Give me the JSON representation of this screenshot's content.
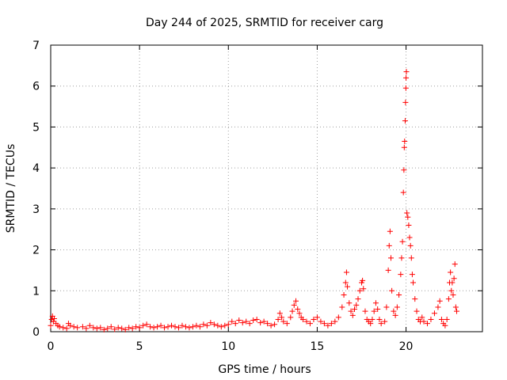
{
  "chart_data": {
    "type": "scatter",
    "title": "Day 244 of 2025, SRMTID for receiver carg",
    "xlabel": "GPS time / hours",
    "ylabel": "SRMTID / TECUs",
    "xlim": [
      0,
      24.3
    ],
    "ylim": [
      0,
      7
    ],
    "xticks": [
      "0",
      "5",
      "10",
      "15",
      "20"
    ],
    "yticks": [
      "0",
      "1",
      "2",
      "3",
      "4",
      "5",
      "6",
      "7"
    ],
    "grid": true,
    "marker": "+",
    "color": "#ff0000",
    "series": [
      {
        "name": "SRMTID",
        "points": [
          [
            0.0,
            0.15
          ],
          [
            0.05,
            0.3
          ],
          [
            0.1,
            0.38
          ],
          [
            0.15,
            0.25
          ],
          [
            0.2,
            0.32
          ],
          [
            0.3,
            0.2
          ],
          [
            0.4,
            0.15
          ],
          [
            0.5,
            0.12
          ],
          [
            0.7,
            0.1
          ],
          [
            0.9,
            0.08
          ],
          [
            1.0,
            0.2
          ],
          [
            1.1,
            0.15
          ],
          [
            1.3,
            0.12
          ],
          [
            1.5,
            0.1
          ],
          [
            1.8,
            0.12
          ],
          [
            2.0,
            0.08
          ],
          [
            2.2,
            0.15
          ],
          [
            2.4,
            0.1
          ],
          [
            2.6,
            0.08
          ],
          [
            2.8,
            0.1
          ],
          [
            3.0,
            0.05
          ],
          [
            3.2,
            0.08
          ],
          [
            3.4,
            0.12
          ],
          [
            3.6,
            0.06
          ],
          [
            3.8,
            0.1
          ],
          [
            4.0,
            0.08
          ],
          [
            4.2,
            0.05
          ],
          [
            4.4,
            0.1
          ],
          [
            4.6,
            0.08
          ],
          [
            4.8,
            0.12
          ],
          [
            5.0,
            0.1
          ],
          [
            5.2,
            0.15
          ],
          [
            5.4,
            0.18
          ],
          [
            5.6,
            0.12
          ],
          [
            5.8,
            0.1
          ],
          [
            6.0,
            0.12
          ],
          [
            6.2,
            0.15
          ],
          [
            6.4,
            0.1
          ],
          [
            6.6,
            0.12
          ],
          [
            6.8,
            0.15
          ],
          [
            7.0,
            0.12
          ],
          [
            7.2,
            0.1
          ],
          [
            7.4,
            0.15
          ],
          [
            7.6,
            0.12
          ],
          [
            7.8,
            0.1
          ],
          [
            8.0,
            0.12
          ],
          [
            8.2,
            0.15
          ],
          [
            8.4,
            0.12
          ],
          [
            8.6,
            0.18
          ],
          [
            8.8,
            0.15
          ],
          [
            9.0,
            0.22
          ],
          [
            9.2,
            0.18
          ],
          [
            9.4,
            0.15
          ],
          [
            9.6,
            0.12
          ],
          [
            9.8,
            0.15
          ],
          [
            10.0,
            0.18
          ],
          [
            10.2,
            0.25
          ],
          [
            10.4,
            0.2
          ],
          [
            10.6,
            0.28
          ],
          [
            10.8,
            0.22
          ],
          [
            11.0,
            0.25
          ],
          [
            11.2,
            0.2
          ],
          [
            11.4,
            0.28
          ],
          [
            11.6,
            0.3
          ],
          [
            11.8,
            0.22
          ],
          [
            12.0,
            0.25
          ],
          [
            12.2,
            0.2
          ],
          [
            12.4,
            0.15
          ],
          [
            12.6,
            0.18
          ],
          [
            12.8,
            0.3
          ],
          [
            12.9,
            0.45
          ],
          [
            13.0,
            0.35
          ],
          [
            13.1,
            0.25
          ],
          [
            13.3,
            0.2
          ],
          [
            13.5,
            0.35
          ],
          [
            13.6,
            0.5
          ],
          [
            13.7,
            0.65
          ],
          [
            13.8,
            0.75
          ],
          [
            13.9,
            0.55
          ],
          [
            14.0,
            0.45
          ],
          [
            14.1,
            0.35
          ],
          [
            14.2,
            0.3
          ],
          [
            14.4,
            0.25
          ],
          [
            14.6,
            0.2
          ],
          [
            14.8,
            0.3
          ],
          [
            15.0,
            0.35
          ],
          [
            15.2,
            0.25
          ],
          [
            15.4,
            0.2
          ],
          [
            15.6,
            0.15
          ],
          [
            15.8,
            0.2
          ],
          [
            16.0,
            0.25
          ],
          [
            16.2,
            0.35
          ],
          [
            16.4,
            0.6
          ],
          [
            16.5,
            0.9
          ],
          [
            16.6,
            1.2
          ],
          [
            16.65,
            1.45
          ],
          [
            16.7,
            1.1
          ],
          [
            16.8,
            0.7
          ],
          [
            16.9,
            0.5
          ],
          [
            17.0,
            0.4
          ],
          [
            17.1,
            0.55
          ],
          [
            17.2,
            0.65
          ],
          [
            17.3,
            0.8
          ],
          [
            17.4,
            1.0
          ],
          [
            17.5,
            1.2
          ],
          [
            17.55,
            1.25
          ],
          [
            17.6,
            1.05
          ],
          [
            17.7,
            0.5
          ],
          [
            17.8,
            0.3
          ],
          [
            17.9,
            0.25
          ],
          [
            18.0,
            0.2
          ],
          [
            18.1,
            0.3
          ],
          [
            18.2,
            0.5
          ],
          [
            18.3,
            0.7
          ],
          [
            18.4,
            0.55
          ],
          [
            18.5,
            0.3
          ],
          [
            18.6,
            0.2
          ],
          [
            18.8,
            0.25
          ],
          [
            18.9,
            0.6
          ],
          [
            19.0,
            1.5
          ],
          [
            19.05,
            2.1
          ],
          [
            19.1,
            2.45
          ],
          [
            19.15,
            1.8
          ],
          [
            19.2,
            1.0
          ],
          [
            19.3,
            0.5
          ],
          [
            19.4,
            0.4
          ],
          [
            19.5,
            0.6
          ],
          [
            19.6,
            0.9
          ],
          [
            19.7,
            1.4
          ],
          [
            19.75,
            1.8
          ],
          [
            19.8,
            2.2
          ],
          [
            19.85,
            3.4
          ],
          [
            19.88,
            3.95
          ],
          [
            19.9,
            4.5
          ],
          [
            19.92,
            4.65
          ],
          [
            19.95,
            5.15
          ],
          [
            19.97,
            5.6
          ],
          [
            19.99,
            5.95
          ],
          [
            20.0,
            6.2
          ],
          [
            20.02,
            6.35
          ],
          [
            20.05,
            2.9
          ],
          [
            20.1,
            2.8
          ],
          [
            20.15,
            2.6
          ],
          [
            20.2,
            2.3
          ],
          [
            20.25,
            2.1
          ],
          [
            20.3,
            1.8
          ],
          [
            20.35,
            1.4
          ],
          [
            20.4,
            1.2
          ],
          [
            20.5,
            0.8
          ],
          [
            20.6,
            0.5
          ],
          [
            20.7,
            0.3
          ],
          [
            20.8,
            0.25
          ],
          [
            20.9,
            0.35
          ],
          [
            21.0,
            0.25
          ],
          [
            21.2,
            0.2
          ],
          [
            21.4,
            0.3
          ],
          [
            21.6,
            0.45
          ],
          [
            21.8,
            0.6
          ],
          [
            21.9,
            0.75
          ],
          [
            22.0,
            0.3
          ],
          [
            22.1,
            0.2
          ],
          [
            22.2,
            0.15
          ],
          [
            22.3,
            0.3
          ],
          [
            22.4,
            0.8
          ],
          [
            22.45,
            1.2
          ],
          [
            22.5,
            1.45
          ],
          [
            22.55,
            1.0
          ],
          [
            22.6,
            1.2
          ],
          [
            22.65,
            0.9
          ],
          [
            22.7,
            1.3
          ],
          [
            22.75,
            1.65
          ],
          [
            22.8,
            0.6
          ],
          [
            22.85,
            0.5
          ]
        ]
      }
    ]
  }
}
